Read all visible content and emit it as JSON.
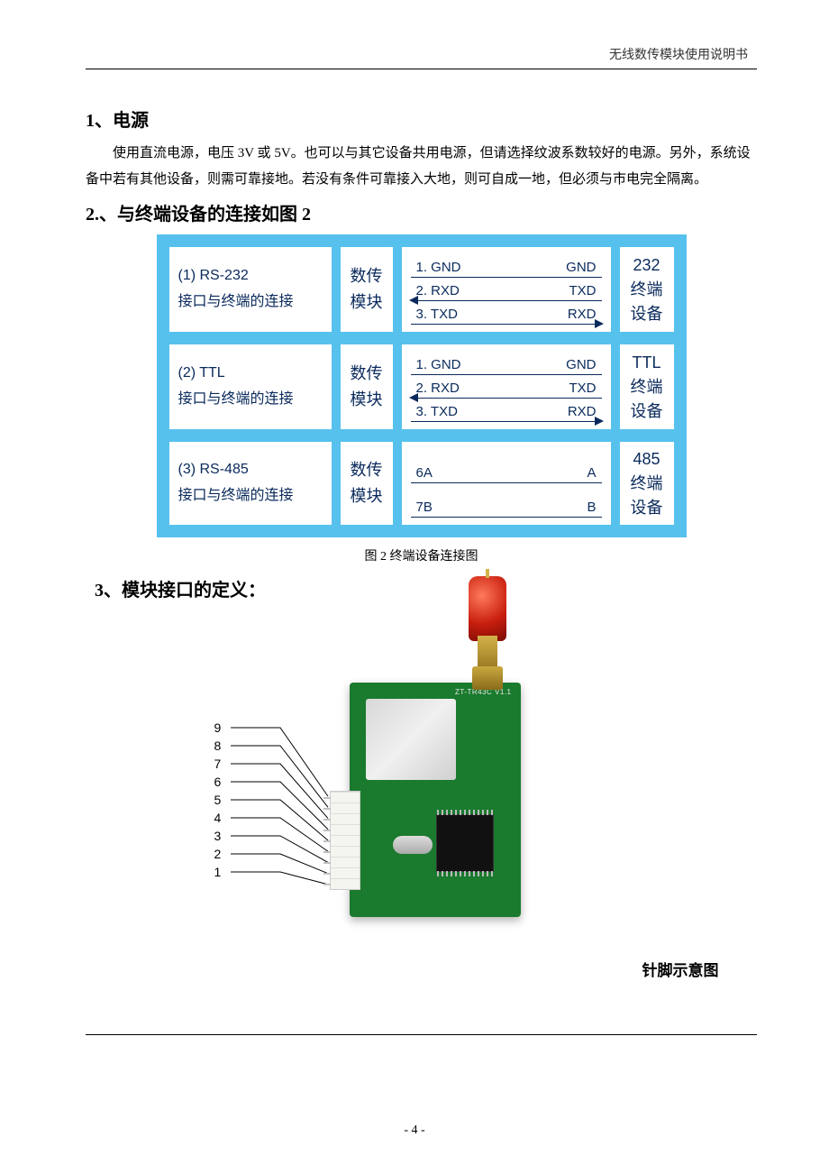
{
  "header": {
    "doc_title": "无线数传模块使用说明书"
  },
  "section1": {
    "heading": "1、电源",
    "paragraph": "使用直流电源，电压 3V 或 5V。也可以与其它设备共用电源，但请选择纹波系数较好的电源。另外，系统设备中若有其他设备，则需可靠接地。若没有条件可靠接入大地，则可自成一地，但必须与市电完全隔离。"
  },
  "section2": {
    "heading": "2.、与终端设备的连接如图 2",
    "caption": "图 2 终端设备连接图"
  },
  "diagram": {
    "background_color": "#57c1ee",
    "box_bg": "#ffffff",
    "text_color": "#0a2a5c",
    "module_label_line1": "数传",
    "module_label_line2": "模块",
    "rows": [
      {
        "label_line1": "(1) RS-232",
        "label_line2": "接口与终端的连接",
        "device_line1": "232",
        "device_line2": "终端",
        "device_line3": "设备",
        "wires": [
          {
            "left": "1. GND",
            "right": "GND",
            "arrow": "none"
          },
          {
            "left": "2. RXD",
            "right": "TXD",
            "arrow": "left"
          },
          {
            "left": "3. TXD",
            "right": "RXD",
            "arrow": "right"
          }
        ]
      },
      {
        "label_line1": "(2) TTL",
        "label_line2": "接口与终端的连接",
        "device_line1": "TTL",
        "device_line2": "终端",
        "device_line3": "设备",
        "wires": [
          {
            "left": "1. GND",
            "right": "GND",
            "arrow": "none"
          },
          {
            "left": "2. RXD",
            "right": "TXD",
            "arrow": "left"
          },
          {
            "left": "3. TXD",
            "right": "RXD",
            "arrow": "right"
          }
        ]
      },
      {
        "label_line1": "(3) RS-485",
        "label_line2": "接口与终端的连接",
        "device_line1": "485",
        "device_line2": "终端",
        "device_line3": "设备",
        "wires": [
          {
            "left": "6A",
            "right": "A",
            "arrow": "none",
            "big": true
          },
          {
            "left": "7B",
            "right": "B",
            "arrow": "none",
            "big": true
          }
        ]
      }
    ]
  },
  "section3": {
    "heading": "3、模块接口的定义："
  },
  "pcb": {
    "pins": [
      "9",
      "8",
      "7",
      "6",
      "5",
      "4",
      "3",
      "2",
      "1"
    ],
    "board_text": "ZT-TR43C V1.1",
    "caption": "针脚示意图",
    "colors": {
      "pcb": "#1a7a2e",
      "antenna": "#c81e0e",
      "sma": "#c9a83f",
      "shield": "#e0e0e0",
      "chip": "#111111"
    }
  },
  "footer": {
    "page_number": "- 4 -"
  }
}
